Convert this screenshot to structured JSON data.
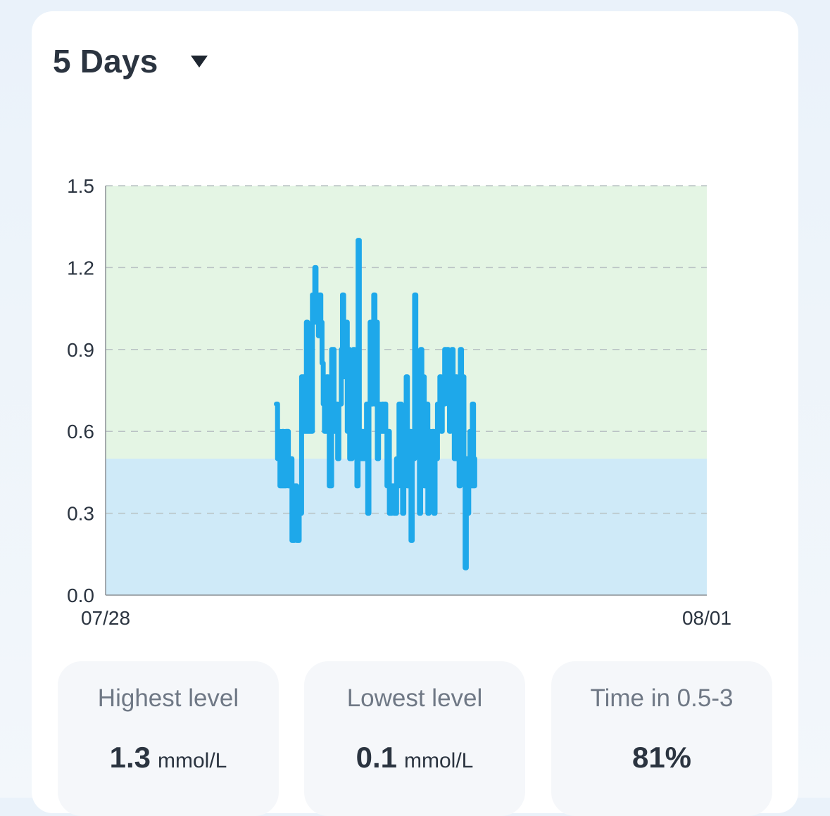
{
  "header": {
    "range_label": "5 Days"
  },
  "chart_data": {
    "type": "line",
    "x_start_label": "07/28",
    "x_end_label": "08/01",
    "ylim": [
      0.0,
      1.5
    ],
    "y_ticks": [
      "0.0",
      "0.3",
      "0.6",
      "0.9",
      "1.2",
      "1.5"
    ],
    "grid": "horizontal dashed",
    "target_band": [
      0.5,
      1.5
    ],
    "band_colors": {
      "in_range": "#e4f5e4",
      "low": "#cfeaf8"
    },
    "series": [
      {
        "color": "#1ea8ea",
        "points": [
          [
            1.42,
            0.7
          ],
          [
            1.43,
            0.5
          ],
          [
            1.44,
            0.6
          ],
          [
            1.45,
            0.4
          ],
          [
            1.47,
            0.6
          ],
          [
            1.48,
            0.4
          ],
          [
            1.5,
            0.6
          ],
          [
            1.52,
            0.4
          ],
          [
            1.54,
            0.5
          ],
          [
            1.55,
            0.2
          ],
          [
            1.57,
            0.4
          ],
          [
            1.59,
            0.2
          ],
          [
            1.61,
            0.3
          ],
          [
            1.63,
            0.8
          ],
          [
            1.65,
            0.6
          ],
          [
            1.67,
            1.0
          ],
          [
            1.68,
            0.6
          ],
          [
            1.7,
            0.9
          ],
          [
            1.71,
            0.6
          ],
          [
            1.72,
            1.1
          ],
          [
            1.73,
            1.0
          ],
          [
            1.74,
            1.2
          ],
          [
            1.75,
            1.0
          ],
          [
            1.76,
            1.1
          ],
          [
            1.77,
            0.95
          ],
          [
            1.78,
            1.1
          ],
          [
            1.79,
            1.0
          ],
          [
            1.8,
            0.85
          ],
          [
            1.81,
            0.7
          ],
          [
            1.82,
            0.6
          ],
          [
            1.84,
            0.8
          ],
          [
            1.85,
            0.6
          ],
          [
            1.86,
            0.4
          ],
          [
            1.88,
            0.9
          ],
          [
            1.9,
            0.6
          ],
          [
            1.92,
            0.7
          ],
          [
            1.93,
            0.5
          ],
          [
            1.94,
            0.7
          ],
          [
            1.96,
            0.9
          ],
          [
            1.97,
            1.1
          ],
          [
            1.98,
            0.8
          ],
          [
            2.0,
            1.0
          ],
          [
            2.01,
            0.6
          ],
          [
            2.02,
            0.9
          ],
          [
            2.03,
            0.5
          ],
          [
            2.05,
            0.7
          ],
          [
            2.06,
            0.9
          ],
          [
            2.07,
            0.6
          ],
          [
            2.08,
            0.7
          ],
          [
            2.09,
            0.4
          ],
          [
            2.1,
            1.3
          ],
          [
            2.11,
            0.6
          ],
          [
            2.12,
            0.5
          ],
          [
            2.13,
            0.6
          ],
          [
            2.14,
            0.5
          ],
          [
            2.15,
            0.6
          ],
          [
            2.16,
            0.5
          ],
          [
            2.17,
            0.7
          ],
          [
            2.18,
            0.3
          ],
          [
            2.19,
            0.7
          ],
          [
            2.2,
            1.0
          ],
          [
            2.21,
            0.7
          ],
          [
            2.22,
            0.9
          ],
          [
            2.23,
            1.1
          ],
          [
            2.24,
            0.7
          ],
          [
            2.25,
            1.0
          ],
          [
            2.26,
            0.5
          ],
          [
            2.27,
            0.7
          ],
          [
            2.28,
            0.6
          ],
          [
            2.3,
            0.7
          ],
          [
            2.31,
            0.6
          ],
          [
            2.32,
            0.7
          ],
          [
            2.33,
            0.6
          ],
          [
            2.34,
            0.4
          ],
          [
            2.35,
            0.6
          ],
          [
            2.36,
            0.3
          ],
          [
            2.38,
            0.4
          ],
          [
            2.4,
            0.3
          ],
          [
            2.42,
            0.5
          ],
          [
            2.43,
            0.4
          ],
          [
            2.44,
            0.7
          ],
          [
            2.46,
            0.5
          ],
          [
            2.47,
            0.3
          ],
          [
            2.48,
            0.5
          ],
          [
            2.5,
            0.8
          ],
          [
            2.51,
            0.4
          ],
          [
            2.53,
            0.6
          ],
          [
            2.54,
            0.2
          ],
          [
            2.55,
            0.5
          ],
          [
            2.57,
            1.1
          ],
          [
            2.58,
            0.7
          ],
          [
            2.6,
            0.8
          ],
          [
            2.61,
            0.3
          ],
          [
            2.62,
            0.9
          ],
          [
            2.63,
            0.6
          ],
          [
            2.64,
            0.8
          ],
          [
            2.65,
            0.4
          ],
          [
            2.66,
            0.7
          ],
          [
            2.68,
            0.3
          ],
          [
            2.69,
            0.6
          ],
          [
            2.7,
            0.4
          ],
          [
            2.72,
            0.6
          ],
          [
            2.73,
            0.3
          ],
          [
            2.74,
            0.5
          ],
          [
            2.76,
            0.7
          ],
          [
            2.78,
            0.8
          ],
          [
            2.79,
            0.6
          ],
          [
            2.8,
            0.7
          ],
          [
            2.82,
            0.9
          ],
          [
            2.83,
            0.8
          ],
          [
            2.84,
            0.9
          ],
          [
            2.85,
            0.7
          ],
          [
            2.86,
            0.6
          ],
          [
            2.87,
            0.8
          ],
          [
            2.88,
            0.9
          ],
          [
            2.89,
            0.7
          ],
          [
            2.9,
            0.5
          ],
          [
            2.91,
            0.8
          ],
          [
            2.92,
            0.5
          ],
          [
            2.93,
            0.7
          ],
          [
            2.94,
            0.4
          ],
          [
            2.95,
            0.9
          ],
          [
            2.96,
            0.5
          ],
          [
            2.97,
            0.8
          ],
          [
            2.98,
            0.5
          ],
          [
            2.99,
            0.1
          ],
          [
            3.0,
            0.5
          ],
          [
            3.01,
            0.3
          ],
          [
            3.02,
            0.5
          ],
          [
            3.03,
            0.6
          ],
          [
            3.04,
            0.4
          ],
          [
            3.05,
            0.7
          ],
          [
            3.06,
            0.4
          ],
          [
            3.07,
            0.5
          ]
        ]
      }
    ]
  },
  "stats": [
    {
      "title": "Highest level",
      "value": "1.3",
      "unit": "mmol/L"
    },
    {
      "title": "Lowest level",
      "value": "0.1",
      "unit": "mmol/L"
    },
    {
      "title": "Time in 0.5-3",
      "value": "81%",
      "unit": ""
    }
  ]
}
